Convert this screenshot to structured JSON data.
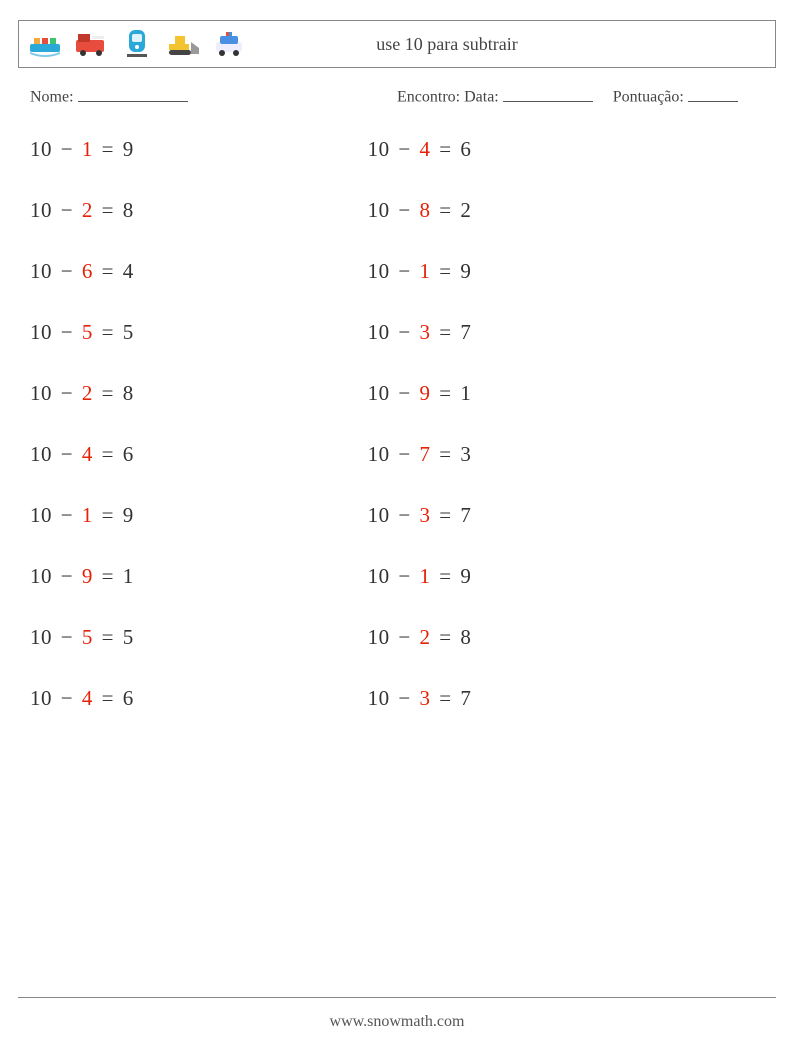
{
  "header": {
    "title": "use 10 para subtrair",
    "icons": [
      "ship-icon",
      "firetruck-icon",
      "train-icon",
      "bulldozer-icon",
      "policecar-icon"
    ]
  },
  "meta": {
    "name_label": "Nome:",
    "encounter_label": "Encontro:",
    "date_label": "Data:",
    "score_label": "Pontuação:"
  },
  "style": {
    "text_color": "#333333",
    "subtrahend_color": "#e52207",
    "font_size_problem": 21,
    "row_gap": 36,
    "border_color": "#888888",
    "background": "#ffffff"
  },
  "columns": [
    [
      {
        "minuend": "10",
        "op": "−",
        "subtrahend": "1",
        "result": "9"
      },
      {
        "minuend": "10",
        "op": "−",
        "subtrahend": "2",
        "result": "8"
      },
      {
        "minuend": "10",
        "op": "−",
        "subtrahend": "6",
        "result": "4"
      },
      {
        "minuend": "10",
        "op": "−",
        "subtrahend": "5",
        "result": "5"
      },
      {
        "minuend": "10",
        "op": "−",
        "subtrahend": "2",
        "result": "8"
      },
      {
        "minuend": "10",
        "op": "−",
        "subtrahend": "4",
        "result": "6"
      },
      {
        "minuend": "10",
        "op": "−",
        "subtrahend": "1",
        "result": "9"
      },
      {
        "minuend": "10",
        "op": "−",
        "subtrahend": "9",
        "result": "1"
      },
      {
        "minuend": "10",
        "op": "−",
        "subtrahend": "5",
        "result": "5"
      },
      {
        "minuend": "10",
        "op": "−",
        "subtrahend": "4",
        "result": "6"
      }
    ],
    [
      {
        "minuend": "10",
        "op": "−",
        "subtrahend": "4",
        "result": "6"
      },
      {
        "minuend": "10",
        "op": "−",
        "subtrahend": "8",
        "result": "2"
      },
      {
        "minuend": "10",
        "op": "−",
        "subtrahend": "1",
        "result": "9"
      },
      {
        "minuend": "10",
        "op": "−",
        "subtrahend": "3",
        "result": "7"
      },
      {
        "minuend": "10",
        "op": "−",
        "subtrahend": "9",
        "result": "1"
      },
      {
        "minuend": "10",
        "op": "−",
        "subtrahend": "7",
        "result": "3"
      },
      {
        "minuend": "10",
        "op": "−",
        "subtrahend": "3",
        "result": "7"
      },
      {
        "minuend": "10",
        "op": "−",
        "subtrahend": "1",
        "result": "9"
      },
      {
        "minuend": "10",
        "op": "−",
        "subtrahend": "2",
        "result": "8"
      },
      {
        "minuend": "10",
        "op": "−",
        "subtrahend": "3",
        "result": "7"
      }
    ]
  ],
  "footer": {
    "url": "www.snowmath.com"
  }
}
